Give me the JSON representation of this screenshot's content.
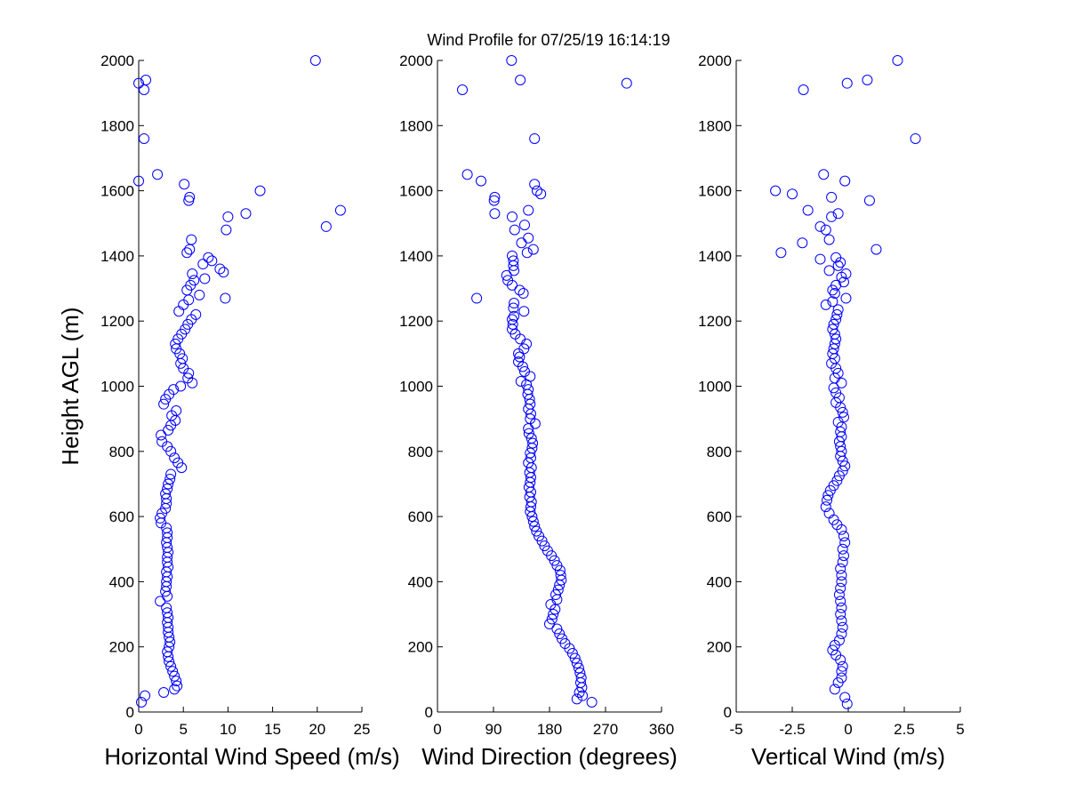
{
  "title": "Wind Profile for  07/25/19 16:14:19",
  "chart_data": [
    {
      "type": "scatter",
      "xlabel": "Horizontal Wind Speed (m/s)",
      "ylabel": "Height AGL (m)",
      "xlim": [
        0,
        25
      ],
      "ylim": [
        0,
        2000
      ],
      "xticks": [
        "0",
        "5",
        "10",
        "15",
        "20",
        "25"
      ],
      "yticks": [
        "0",
        "200",
        "400",
        "600",
        "800",
        "1000",
        "1200",
        "1400",
        "1600",
        "1800",
        "2000"
      ],
      "grid": false,
      "marker": "open-circle",
      "color": "#0000ff",
      "points": [
        [
          0.3,
          30
        ],
        [
          0.7,
          50
        ],
        [
          2.8,
          60
        ],
        [
          4.0,
          70
        ],
        [
          4.3,
          80
        ],
        [
          4.2,
          95
        ],
        [
          4.0,
          110
        ],
        [
          3.8,
          125
        ],
        [
          3.6,
          140
        ],
        [
          3.4,
          155
        ],
        [
          3.3,
          170
        ],
        [
          3.2,
          185
        ],
        [
          3.4,
          200
        ],
        [
          3.5,
          215
        ],
        [
          3.4,
          230
        ],
        [
          3.3,
          245
        ],
        [
          3.3,
          260
        ],
        [
          3.2,
          275
        ],
        [
          3.3,
          290
        ],
        [
          3.2,
          305
        ],
        [
          3.1,
          320
        ],
        [
          2.4,
          340
        ],
        [
          3.2,
          355
        ],
        [
          3.0,
          370
        ],
        [
          3.1,
          385
        ],
        [
          3.1,
          400
        ],
        [
          3.2,
          415
        ],
        [
          3.1,
          430
        ],
        [
          3.3,
          445
        ],
        [
          3.2,
          460
        ],
        [
          3.2,
          475
        ],
        [
          3.3,
          490
        ],
        [
          3.2,
          505
        ],
        [
          3.1,
          520
        ],
        [
          3.2,
          535
        ],
        [
          3.2,
          550
        ],
        [
          3.1,
          565
        ],
        [
          2.5,
          580
        ],
        [
          2.4,
          595
        ],
        [
          2.6,
          610
        ],
        [
          3.0,
          625
        ],
        [
          3.1,
          640
        ],
        [
          3.1,
          655
        ],
        [
          3.0,
          670
        ],
        [
          3.2,
          685
        ],
        [
          3.3,
          700
        ],
        [
          3.5,
          715
        ],
        [
          3.6,
          730
        ],
        [
          4.8,
          750
        ],
        [
          4.4,
          765
        ],
        [
          4.0,
          780
        ],
        [
          3.6,
          800
        ],
        [
          3.2,
          815
        ],
        [
          2.6,
          830
        ],
        [
          2.5,
          850
        ],
        [
          3.3,
          865
        ],
        [
          3.6,
          880
        ],
        [
          4.1,
          895
        ],
        [
          3.7,
          910
        ],
        [
          4.2,
          925
        ],
        [
          2.8,
          945
        ],
        [
          3.0,
          960
        ],
        [
          3.4,
          975
        ],
        [
          3.9,
          990
        ],
        [
          4.7,
          1000
        ],
        [
          6.0,
          1010
        ],
        [
          5.5,
          1025
        ],
        [
          5.6,
          1040
        ],
        [
          5.0,
          1055
        ],
        [
          4.7,
          1070
        ],
        [
          4.9,
          1085
        ],
        [
          4.6,
          1100
        ],
        [
          4.2,
          1115
        ],
        [
          4.1,
          1130
        ],
        [
          4.4,
          1145
        ],
        [
          4.8,
          1160
        ],
        [
          5.2,
          1175
        ],
        [
          5.5,
          1190
        ],
        [
          5.9,
          1205
        ],
        [
          6.4,
          1220
        ],
        [
          4.5,
          1230
        ],
        [
          5.0,
          1250
        ],
        [
          5.6,
          1265
        ],
        [
          9.7,
          1270
        ],
        [
          6.8,
          1280
        ],
        [
          5.4,
          1295
        ],
        [
          5.8,
          1310
        ],
        [
          6.2,
          1325
        ],
        [
          7.4,
          1330
        ],
        [
          6.0,
          1345
        ],
        [
          9.5,
          1350
        ],
        [
          9.1,
          1360
        ],
        [
          7.2,
          1375
        ],
        [
          8.2,
          1385
        ],
        [
          7.8,
          1395
        ],
        [
          5.4,
          1410
        ],
        [
          5.7,
          1420
        ],
        [
          5.9,
          1450
        ],
        [
          9.8,
          1480
        ],
        [
          21.0,
          1490
        ],
        [
          10.0,
          1520
        ],
        [
          12.0,
          1530
        ],
        [
          22.6,
          1540
        ],
        [
          5.6,
          1570
        ],
        [
          5.7,
          1580
        ],
        [
          13.6,
          1600
        ],
        [
          5.1,
          1620
        ],
        [
          0.0,
          1630
        ],
        [
          2.1,
          1650
        ],
        [
          0.6,
          1760
        ],
        [
          0.6,
          1910
        ],
        [
          0.0,
          1930
        ],
        [
          0.8,
          1940
        ],
        [
          19.8,
          2000
        ]
      ]
    },
    {
      "type": "scatter",
      "xlabel": "Wind Direction (degrees)",
      "ylabel": "",
      "xlim": [
        0,
        360
      ],
      "ylim": [
        0,
        2000
      ],
      "xticks": [
        "0",
        "90",
        "180",
        "270",
        "360"
      ],
      "yticks": [
        "0",
        "200",
        "400",
        "600",
        "800",
        "1000",
        "1200",
        "1400",
        "1600",
        "1800",
        "2000"
      ],
      "grid": false,
      "marker": "open-circle",
      "color": "#0000ff",
      "points": [
        [
          248,
          30
        ],
        [
          224,
          40
        ],
        [
          233,
          50
        ],
        [
          228,
          60
        ],
        [
          232,
          75
        ],
        [
          230,
          90
        ],
        [
          231,
          105
        ],
        [
          229,
          120
        ],
        [
          227,
          135
        ],
        [
          224,
          150
        ],
        [
          221,
          165
        ],
        [
          217,
          180
        ],
        [
          212,
          195
        ],
        [
          205,
          210
        ],
        [
          200,
          225
        ],
        [
          196,
          240
        ],
        [
          192,
          255
        ],
        [
          180,
          270
        ],
        [
          184,
          285
        ],
        [
          186,
          300
        ],
        [
          189,
          315
        ],
        [
          182,
          330
        ],
        [
          192,
          345
        ],
        [
          190,
          360
        ],
        [
          194,
          375
        ],
        [
          196,
          390
        ],
        [
          199,
          405
        ],
        [
          198,
          420
        ],
        [
          197,
          435
        ],
        [
          192,
          450
        ],
        [
          188,
          465
        ],
        [
          183,
          480
        ],
        [
          177,
          495
        ],
        [
          172,
          510
        ],
        [
          168,
          525
        ],
        [
          163,
          540
        ],
        [
          159,
          555
        ],
        [
          156,
          570
        ],
        [
          154,
          585
        ],
        [
          152,
          600
        ],
        [
          149,
          615
        ],
        [
          150,
          630
        ],
        [
          151,
          645
        ],
        [
          148,
          660
        ],
        [
          150,
          675
        ],
        [
          147,
          690
        ],
        [
          149,
          705
        ],
        [
          150,
          720
        ],
        [
          148,
          735
        ],
        [
          151,
          750
        ],
        [
          146,
          765
        ],
        [
          150,
          780
        ],
        [
          149,
          795
        ],
        [
          152,
          810
        ],
        [
          153,
          825
        ],
        [
          151,
          840
        ],
        [
          147,
          855
        ],
        [
          146,
          870
        ],
        [
          157,
          885
        ],
        [
          149,
          900
        ],
        [
          150,
          915
        ],
        [
          146,
          930
        ],
        [
          149,
          945
        ],
        [
          148,
          960
        ],
        [
          145,
          975
        ],
        [
          146,
          990
        ],
        [
          143,
          1005
        ],
        [
          134,
          1015
        ],
        [
          149,
          1030
        ],
        [
          140,
          1045
        ],
        [
          137,
          1060
        ],
        [
          130,
          1075
        ],
        [
          132,
          1090
        ],
        [
          130,
          1100
        ],
        [
          139,
          1115
        ],
        [
          143,
          1130
        ],
        [
          133,
          1145
        ],
        [
          125,
          1160
        ],
        [
          120,
          1175
        ],
        [
          121,
          1190
        ],
        [
          120,
          1205
        ],
        [
          123,
          1215
        ],
        [
          139,
          1230
        ],
        [
          122,
          1240
        ],
        [
          123,
          1255
        ],
        [
          63,
          1270
        ],
        [
          138,
          1285
        ],
        [
          132,
          1295
        ],
        [
          120,
          1310
        ],
        [
          113,
          1325
        ],
        [
          111,
          1340
        ],
        [
          123,
          1355
        ],
        [
          122,
          1370
        ],
        [
          122,
          1385
        ],
        [
          120,
          1400
        ],
        [
          144,
          1410
        ],
        [
          154,
          1420
        ],
        [
          135,
          1440
        ],
        [
          146,
          1455
        ],
        [
          124,
          1480
        ],
        [
          140,
          1495
        ],
        [
          92,
          1530
        ],
        [
          146,
          1540
        ],
        [
          120,
          1520
        ],
        [
          91,
          1570
        ],
        [
          92,
          1580
        ],
        [
          166,
          1590
        ],
        [
          160,
          1600
        ],
        [
          156,
          1620
        ],
        [
          70,
          1630
        ],
        [
          48,
          1650
        ],
        [
          156,
          1760
        ],
        [
          40,
          1910
        ],
        [
          304,
          1930
        ],
        [
          133,
          1940
        ],
        [
          119,
          2000
        ]
      ]
    },
    {
      "type": "scatter",
      "xlabel": "Vertical Wind (m/s)",
      "ylabel": "",
      "xlim": [
        -5,
        5
      ],
      "ylim": [
        0,
        2000
      ],
      "xticks": [
        "-5",
        "-2.5",
        "0",
        "2.5",
        "5"
      ],
      "yticks": [
        "0",
        "200",
        "400",
        "600",
        "800",
        "1000",
        "1200",
        "1400",
        "1600",
        "1800",
        "2000"
      ],
      "grid": false,
      "marker": "open-circle",
      "color": "#0000ff",
      "points": [
        [
          -0.05,
          25
        ],
        [
          -0.15,
          45
        ],
        [
          -0.6,
          70
        ],
        [
          -0.45,
          90
        ],
        [
          -0.3,
          105
        ],
        [
          -0.3,
          125
        ],
        [
          -0.25,
          140
        ],
        [
          -0.35,
          160
        ],
        [
          -0.55,
          175
        ],
        [
          -0.7,
          190
        ],
        [
          -0.6,
          205
        ],
        [
          -0.4,
          220
        ],
        [
          -0.3,
          240
        ],
        [
          -0.25,
          260
        ],
        [
          -0.3,
          280
        ],
        [
          -0.35,
          300
        ],
        [
          -0.3,
          320
        ],
        [
          -0.35,
          340
        ],
        [
          -0.4,
          360
        ],
        [
          -0.35,
          380
        ],
        [
          -0.3,
          400
        ],
        [
          -0.3,
          420
        ],
        [
          -0.35,
          440
        ],
        [
          -0.25,
          460
        ],
        [
          -0.2,
          480
        ],
        [
          -0.25,
          500
        ],
        [
          -0.15,
          520
        ],
        [
          -0.2,
          540
        ],
        [
          -0.3,
          560
        ],
        [
          -0.5,
          575
        ],
        [
          -0.65,
          590
        ],
        [
          -0.85,
          610
        ],
        [
          -1.0,
          630
        ],
        [
          -0.95,
          650
        ],
        [
          -0.9,
          665
        ],
        [
          -0.8,
          680
        ],
        [
          -0.65,
          695
        ],
        [
          -0.5,
          710
        ],
        [
          -0.4,
          725
        ],
        [
          -0.25,
          740
        ],
        [
          -0.15,
          755
        ],
        [
          -0.25,
          770
        ],
        [
          -0.35,
          785
        ],
        [
          -0.3,
          800
        ],
        [
          -0.35,
          815
        ],
        [
          -0.4,
          830
        ],
        [
          -0.3,
          845
        ],
        [
          -0.35,
          860
        ],
        [
          -0.3,
          875
        ],
        [
          -0.45,
          890
        ],
        [
          -0.2,
          905
        ],
        [
          -0.25,
          920
        ],
        [
          -0.35,
          935
        ],
        [
          -0.55,
          950
        ],
        [
          -0.4,
          965
        ],
        [
          -0.55,
          980
        ],
        [
          -0.65,
          995
        ],
        [
          -0.3,
          1010
        ],
        [
          -0.6,
          1025
        ],
        [
          -0.45,
          1040
        ],
        [
          -0.55,
          1055
        ],
        [
          -0.75,
          1070
        ],
        [
          -0.6,
          1085
        ],
        [
          -0.7,
          1100
        ],
        [
          -0.65,
          1115
        ],
        [
          -0.6,
          1130
        ],
        [
          -0.55,
          1145
        ],
        [
          -0.6,
          1160
        ],
        [
          -0.7,
          1175
        ],
        [
          -0.65,
          1190
        ],
        [
          -0.55,
          1205
        ],
        [
          -0.5,
          1220
        ],
        [
          -0.45,
          1235
        ],
        [
          -1.0,
          1250
        ],
        [
          -0.7,
          1260
        ],
        [
          -0.1,
          1270
        ],
        [
          -0.6,
          1285
        ],
        [
          -0.7,
          1295
        ],
        [
          -0.55,
          1310
        ],
        [
          -0.2,
          1320
        ],
        [
          -0.3,
          1335
        ],
        [
          -0.1,
          1345
        ],
        [
          -0.85,
          1355
        ],
        [
          -0.45,
          1370
        ],
        [
          -0.35,
          1380
        ],
        [
          -0.55,
          1395
        ],
        [
          -1.25,
          1390
        ],
        [
          -3.0,
          1410
        ],
        [
          1.25,
          1420
        ],
        [
          -2.05,
          1440
        ],
        [
          -0.85,
          1450
        ],
        [
          -1.0,
          1480
        ],
        [
          -1.25,
          1490
        ],
        [
          -0.75,
          1520
        ],
        [
          -0.45,
          1530
        ],
        [
          -1.8,
          1540
        ],
        [
          0.95,
          1570
        ],
        [
          -0.75,
          1580
        ],
        [
          -2.5,
          1590
        ],
        [
          -3.25,
          1600
        ],
        [
          -0.15,
          1630
        ],
        [
          -1.1,
          1650
        ],
        [
          3.0,
          1760
        ],
        [
          -2.0,
          1910
        ],
        [
          -0.05,
          1930
        ],
        [
          0.85,
          1940
        ],
        [
          2.2,
          2000
        ]
      ]
    }
  ]
}
